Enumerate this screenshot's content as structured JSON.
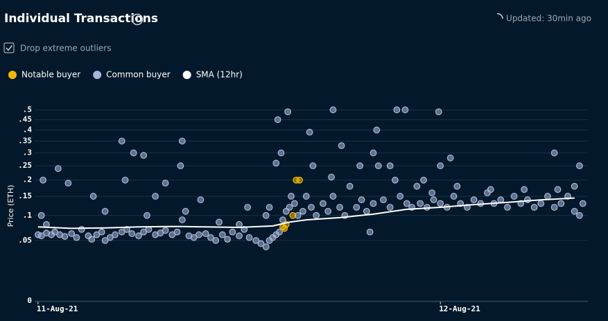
{
  "header": {
    "title": "Individual Transactions",
    "updated": "Updated: 30min ago"
  },
  "filter": {
    "label": "Drop extreme outliers",
    "checked": true
  },
  "chart_data": {
    "type": "scatter",
    "ylabel": "Price (ETH)",
    "yscale": "sqrt",
    "grid": true,
    "legend": "top-left",
    "xlim": [
      -0.2,
      32.8
    ],
    "ylim": [
      0,
      0.52
    ],
    "xticks": [
      {
        "value": 0,
        "label": "11-Aug-21"
      },
      {
        "value": 24,
        "label": "12-Aug-21"
      }
    ],
    "yticks": [
      0,
      {
        "value": 0.05,
        "label": ".05"
      },
      {
        "value": 0.1,
        "label": ".1"
      },
      {
        "value": 0.15,
        "label": ".15"
      },
      {
        "value": 0.2,
        "label": ".2"
      },
      {
        "value": 0.25,
        "label": ".25"
      },
      {
        "value": 0.3,
        "label": ".3"
      },
      {
        "value": 0.35,
        "label": ".35"
      },
      {
        "value": 0.4,
        "label": ".4"
      },
      {
        "value": 0.45,
        "label": ".45"
      },
      {
        "value": 0.5,
        "label": ".5"
      }
    ],
    "series": [
      {
        "name": "Notable buyer",
        "color": "#f2b705",
        "kind": "points",
        "x": [
          14.6,
          14.8,
          15.2,
          15.4,
          15.6,
          14.7
        ],
        "values": [
          0.075,
          0.08,
          0.1,
          0.2,
          0.2,
          0.072
        ]
      },
      {
        "name": "Common buyer",
        "color": "#a9b6d8",
        "kind": "points",
        "x": [
          0.0,
          0.2,
          0.5,
          0.8,
          1.0,
          1.3,
          1.6,
          2.0,
          2.3,
          2.6,
          3.0,
          3.2,
          3.5,
          3.8,
          4.0,
          4.3,
          4.6,
          5.0,
          5.3,
          5.6,
          6.0,
          6.3,
          6.6,
          7.0,
          7.3,
          7.6,
          8.0,
          8.3,
          8.6,
          9.0,
          9.3,
          9.6,
          10.0,
          10.3,
          10.6,
          11.0,
          11.3,
          11.6,
          12.0,
          12.3,
          12.6,
          13.0,
          13.3,
          13.6,
          13.8,
          14.0,
          14.2,
          14.4,
          0.2,
          0.5,
          1.8,
          3.3,
          4.0,
          5.2,
          6.5,
          7.0,
          8.8,
          9.7,
          10.8,
          12.0,
          12.5,
          13.6,
          13.8,
          0.3,
          1.2,
          5.0,
          5.7,
          6.3,
          8.6,
          8.5,
          7.6,
          14.9,
          17.6,
          21.4,
          21.9,
          23.9,
          30.8,
          32.3,
          24.6,
          20.2,
          18.1,
          16.2,
          14.3,
          14.6,
          14.8,
          15.0,
          15.3,
          15.5,
          15.8,
          16.0,
          16.3,
          16.6,
          17.0,
          17.3,
          17.6,
          18.0,
          18.3,
          18.6,
          19.0,
          19.3,
          19.6,
          20.0,
          20.3,
          20.6,
          21.0,
          21.3,
          21.6,
          22.0,
          22.3,
          22.6,
          14.5,
          14.2,
          15.1,
          16.4,
          17.5,
          19.2,
          20.0,
          21.0,
          19.8,
          22.8,
          23.2,
          23.6,
          24.0,
          24.4,
          24.8,
          25.2,
          25.6,
          26.0,
          26.4,
          26.8,
          27.2,
          27.6,
          28.0,
          28.4,
          28.8,
          29.2,
          29.6,
          30.0,
          30.4,
          30.8,
          31.2,
          31.6,
          32.0,
          32.3,
          32.5,
          23.0,
          23.5,
          25.0,
          27.0,
          29.0,
          31.0,
          32.0,
          24.0
        ],
        "values": [
          0.06,
          0.058,
          0.063,
          0.06,
          0.065,
          0.06,
          0.057,
          0.062,
          0.055,
          0.07,
          0.058,
          0.052,
          0.06,
          0.065,
          0.05,
          0.055,
          0.06,
          0.065,
          0.07,
          0.062,
          0.058,
          0.065,
          0.07,
          0.06,
          0.063,
          0.068,
          0.06,
          0.065,
          0.09,
          0.058,
          0.055,
          0.06,
          0.062,
          0.055,
          0.05,
          0.06,
          0.052,
          0.065,
          0.058,
          0.07,
          0.055,
          0.05,
          0.045,
          0.04,
          0.05,
          0.055,
          0.06,
          0.065,
          0.1,
          0.08,
          0.19,
          0.15,
          0.11,
          0.2,
          0.1,
          0.15,
          0.11,
          0.14,
          0.085,
          0.08,
          0.12,
          0.1,
          0.12,
          0.2,
          0.24,
          0.35,
          0.3,
          0.29,
          0.35,
          0.25,
          0.19,
          0.49,
          0.5,
          0.5,
          0.5,
          0.49,
          0.3,
          0.25,
          0.28,
          0.4,
          0.33,
          0.39,
          0.45,
          0.09,
          0.11,
          0.12,
          0.13,
          0.1,
          0.11,
          0.15,
          0.12,
          0.1,
          0.13,
          0.11,
          0.15,
          0.12,
          0.1,
          0.18,
          0.12,
          0.14,
          0.11,
          0.13,
          0.25,
          0.14,
          0.12,
          0.2,
          0.15,
          0.13,
          0.12,
          0.18,
          0.3,
          0.26,
          0.15,
          0.25,
          0.21,
          0.25,
          0.3,
          0.25,
          0.065,
          0.13,
          0.12,
          0.14,
          0.13,
          0.12,
          0.15,
          0.13,
          0.12,
          0.14,
          0.13,
          0.16,
          0.13,
          0.14,
          0.12,
          0.15,
          0.13,
          0.14,
          0.12,
          0.13,
          0.15,
          0.12,
          0.13,
          0.15,
          0.11,
          0.1,
          0.13,
          0.2,
          0.16,
          0.18,
          0.17,
          0.17,
          0.17,
          0.18,
          0.25
        ]
      },
      {
        "name": "SMA (12hr)",
        "color": "#ffffff",
        "kind": "line",
        "x": [
          0,
          2,
          4,
          6,
          8,
          10,
          12,
          14,
          15,
          16,
          18,
          20,
          22,
          24,
          26,
          28,
          30,
          32
        ],
        "values": [
          0.075,
          0.072,
          0.073,
          0.075,
          0.076,
          0.075,
          0.074,
          0.077,
          0.085,
          0.09,
          0.095,
          0.103,
          0.115,
          0.12,
          0.127,
          0.133,
          0.14,
          0.145
        ]
      }
    ]
  }
}
